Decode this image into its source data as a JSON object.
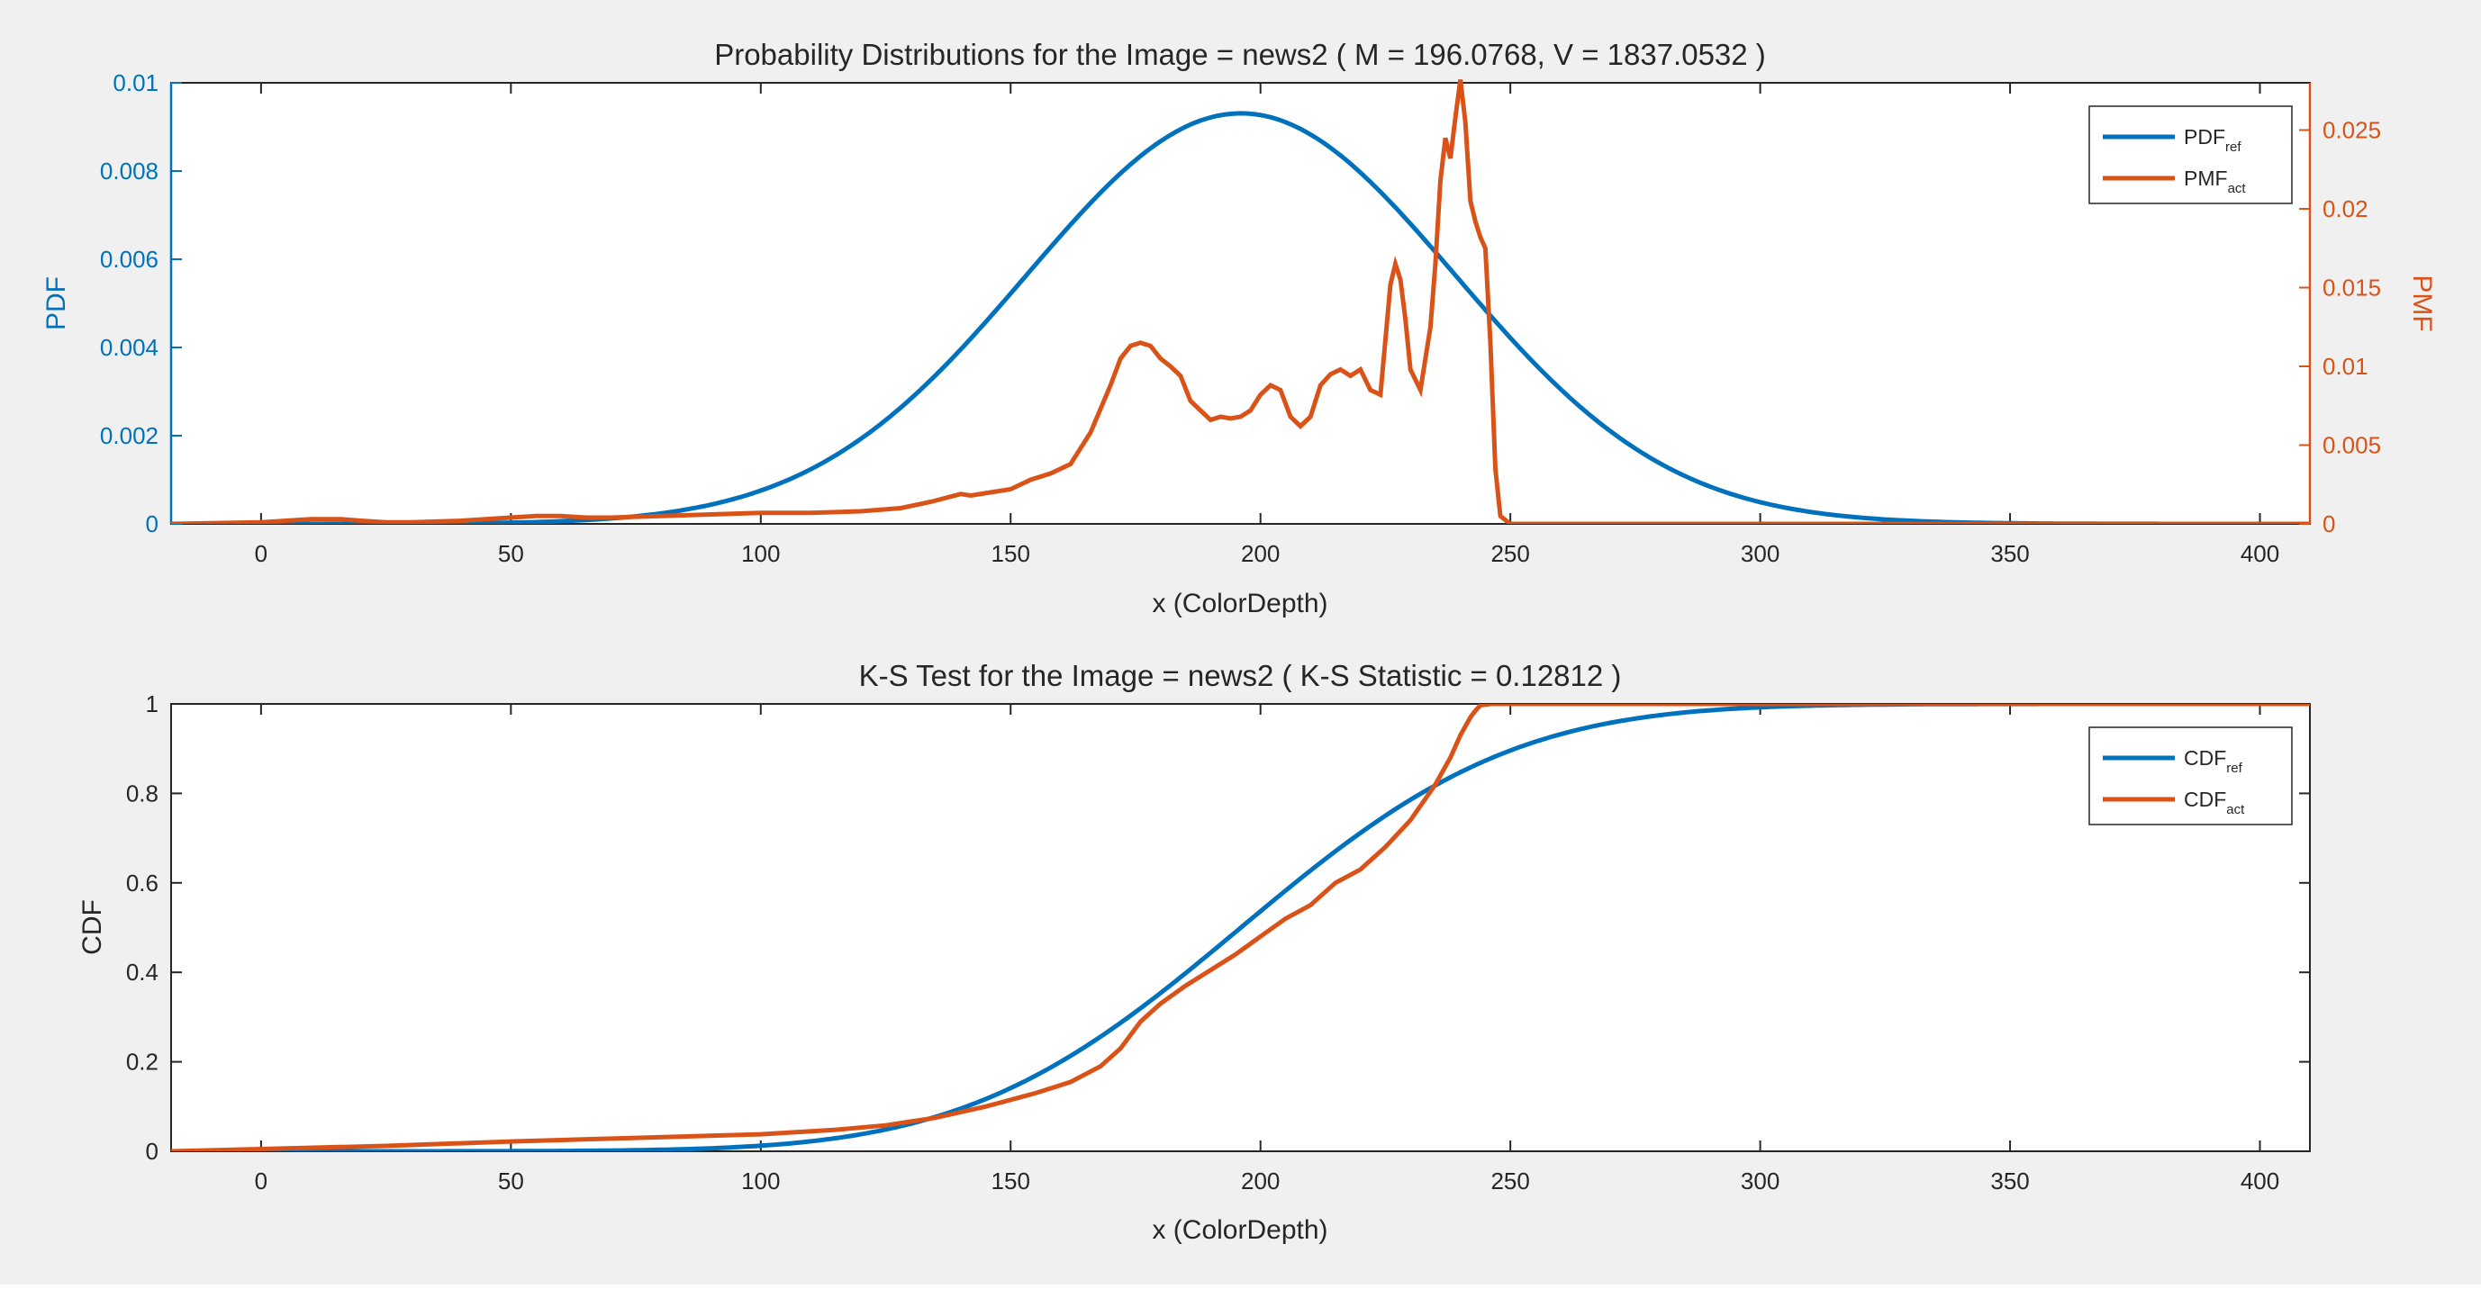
{
  "colors": {
    "blue": "#0072BD",
    "orange": "#D95319",
    "axis": "#262626",
    "left_axis_blue": "#0072BD"
  },
  "chart_data": [
    {
      "type": "line",
      "title": "Probability Distributions for the Image = news2  ( M = 196.0768, V = 1837.0532 )",
      "xlabel": "x (ColorDepth)",
      "ylabel": "PDF",
      "ylabel_right": "PMF",
      "xlim": [
        -18,
        410
      ],
      "ylim": [
        0,
        0.01
      ],
      "ylim_right": [
        0,
        0.028
      ],
      "xticks": [
        "0",
        "50",
        "100",
        "150",
        "200",
        "250",
        "300",
        "350",
        "400"
      ],
      "xtick_values": [
        0,
        50,
        100,
        150,
        200,
        250,
        300,
        350,
        400
      ],
      "yticks": [
        "0",
        "0.002",
        "0.004",
        "0.006",
        "0.008",
        "0.01"
      ],
      "ytick_values": [
        0,
        0.002,
        0.004,
        0.006,
        0.008,
        0.01
      ],
      "yticks_right": [
        "0",
        "0.005",
        "0.01",
        "0.015",
        "0.02",
        "0.025"
      ],
      "ytick_values_right": [
        0,
        0.005,
        0.01,
        0.015,
        0.02,
        0.025
      ],
      "legend": {
        "position": "top-right",
        "entries": [
          {
            "base": "PDF",
            "sub": "ref",
            "series": "pdf_ref"
          },
          {
            "base": "PMF",
            "sub": "act",
            "series": "pmf_act"
          }
        ]
      },
      "series": [
        {
          "name": "PDF_ref",
          "id": "pdf_ref",
          "kind": "gaussian_pdf",
          "mean": 196.0768,
          "variance": 1837.0532,
          "axis": "left",
          "color": "#0072BD"
        },
        {
          "name": "PMF_act",
          "id": "pmf_act",
          "axis": "right",
          "color": "#D95319",
          "x": [
            -18,
            0,
            5,
            10,
            13,
            16,
            20,
            25,
            30,
            40,
            45,
            50,
            55,
            60,
            65,
            70,
            80,
            90,
            100,
            110,
            120,
            128,
            134,
            140,
            142,
            146,
            150,
            154,
            158,
            162,
            166,
            170,
            172,
            174,
            176,
            178,
            180,
            182,
            184,
            186,
            188,
            190,
            192,
            194,
            196,
            198,
            200,
            202,
            204,
            206,
            208,
            210,
            212,
            214,
            216,
            218,
            220,
            222,
            224,
            226,
            227,
            228,
            229,
            230,
            232,
            234,
            235,
            236,
            237,
            238,
            239,
            240,
            241,
            242,
            243,
            244,
            245,
            246,
            247,
            248,
            250,
            410
          ],
          "y": [
            0,
            0.0001,
            0.0002,
            0.0003,
            0.0003,
            0.0003,
            0.0002,
            0.0001,
            0.0001,
            0.0002,
            0.0003,
            0.0004,
            0.0005,
            0.0005,
            0.0004,
            0.0004,
            0.0005,
            0.0006,
            0.0007,
            0.0007,
            0.0008,
            0.001,
            0.0014,
            0.0019,
            0.0018,
            0.002,
            0.0022,
            0.0028,
            0.0032,
            0.0038,
            0.0058,
            0.0088,
            0.0105,
            0.0113,
            0.0115,
            0.0113,
            0.0105,
            0.01,
            0.0094,
            0.0078,
            0.0072,
            0.0066,
            0.0068,
            0.0067,
            0.0068,
            0.0072,
            0.0082,
            0.0088,
            0.0085,
            0.0068,
            0.0062,
            0.0068,
            0.0088,
            0.0095,
            0.0098,
            0.0094,
            0.0098,
            0.0085,
            0.0082,
            0.0152,
            0.0165,
            0.0155,
            0.013,
            0.0098,
            0.0085,
            0.0125,
            0.0165,
            0.0218,
            0.0245,
            0.0232,
            0.0258,
            0.0282,
            0.0255,
            0.0205,
            0.0192,
            0.0182,
            0.0175,
            0.0115,
            0.0035,
            0.0005,
            0,
            0
          ]
        }
      ]
    },
    {
      "type": "line",
      "title": "K-S Test for the Image = news2  ( K-S Statistic = 0.12812 )",
      "xlabel": "x (ColorDepth)",
      "ylabel": "CDF",
      "xlim": [
        -18,
        410
      ],
      "ylim": [
        0,
        1
      ],
      "xticks": [
        "0",
        "50",
        "100",
        "150",
        "200",
        "250",
        "300",
        "350",
        "400"
      ],
      "xtick_values": [
        0,
        50,
        100,
        150,
        200,
        250,
        300,
        350,
        400
      ],
      "yticks": [
        "0",
        "0.2",
        "0.4",
        "0.6",
        "0.8",
        "1"
      ],
      "ytick_values": [
        0,
        0.2,
        0.4,
        0.6,
        0.8,
        1
      ],
      "legend": {
        "position": "top-right",
        "entries": [
          {
            "base": "CDF",
            "sub": "ref",
            "series": "cdf_ref"
          },
          {
            "base": "CDF",
            "sub": "act",
            "series": "cdf_act"
          }
        ]
      },
      "series": [
        {
          "name": "CDF_ref",
          "id": "cdf_ref",
          "kind": "gaussian_cdf",
          "mean": 196.0768,
          "variance": 1837.0532,
          "color": "#0072BD"
        },
        {
          "name": "CDF_act",
          "id": "cdf_act",
          "color": "#D95319",
          "x": [
            -18,
            0,
            25,
            50,
            75,
            100,
            115,
            125,
            135,
            145,
            155,
            162,
            168,
            172,
            176,
            180,
            185,
            190,
            195,
            200,
            205,
            210,
            215,
            220,
            225,
            230,
            235,
            238,
            240,
            242,
            243,
            244,
            246,
            250,
            300,
            410
          ],
          "y": [
            0,
            0.005,
            0.012,
            0.022,
            0.03,
            0.038,
            0.048,
            0.058,
            0.075,
            0.1,
            0.13,
            0.155,
            0.19,
            0.23,
            0.29,
            0.33,
            0.37,
            0.405,
            0.44,
            0.48,
            0.52,
            0.55,
            0.6,
            0.63,
            0.68,
            0.74,
            0.82,
            0.88,
            0.93,
            0.97,
            0.985,
            0.997,
            1,
            1,
            1,
            1
          ]
        }
      ]
    }
  ]
}
